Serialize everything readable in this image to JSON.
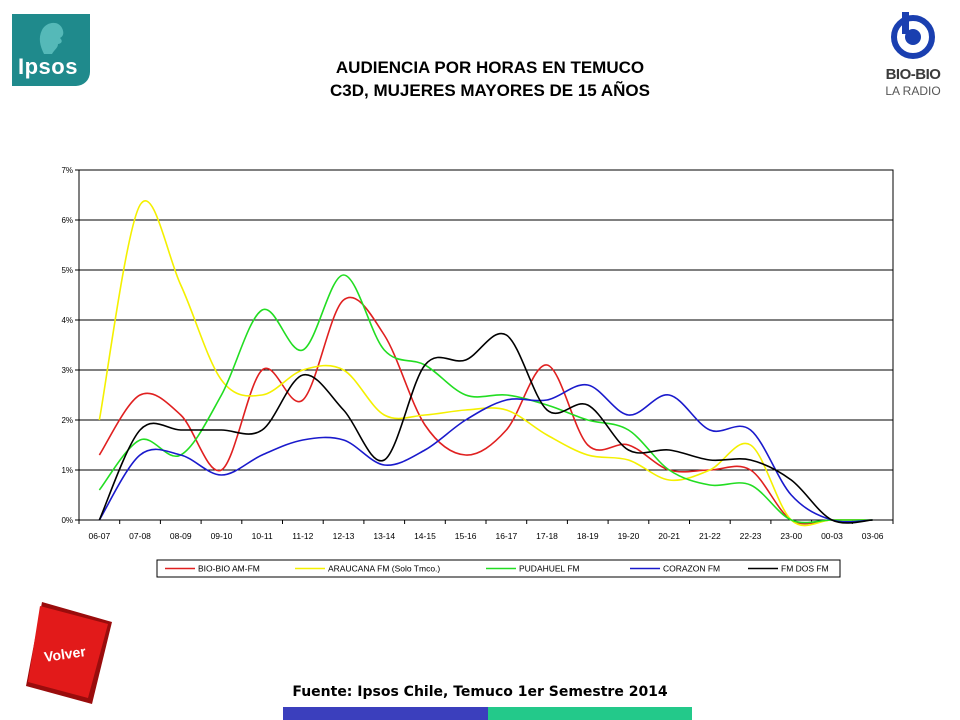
{
  "brand": {
    "ipsos_logo": "Ipsos",
    "biobio_logo_name": "BIO-BIO",
    "biobio_logo_sub": "LA RADIO",
    "ipsos_color": "#1f8a8c"
  },
  "title_line1": "AUDIENCIA POR HORAS EN TEMUCO",
  "title_line2": "C3D, MUJERES MAYORES DE 15 AÑOS",
  "volver_label": "Volver",
  "source": "Fuente: Ipsos Chile, Temuco 1er Semestre 2014",
  "chart_data": {
    "type": "line",
    "smooth": true,
    "categories": [
      "06-07",
      "07-08",
      "08-09",
      "09-10",
      "10-11",
      "11-12",
      "12-13",
      "13-14",
      "14-15",
      "15-16",
      "16-17",
      "17-18",
      "18-19",
      "19-20",
      "20-21",
      "21-22",
      "22-23",
      "23-00",
      "00-03",
      "03-06"
    ],
    "y_ticks": [
      "0%",
      "1%",
      "2%",
      "3%",
      "4%",
      "5%",
      "6%",
      "7%"
    ],
    "ylim": [
      0,
      7
    ],
    "grid": true,
    "legend_position": "bottom",
    "series": [
      {
        "name": "BIO-BIO AM-FM",
        "color": "#e02020",
        "values": [
          1.3,
          2.5,
          2.1,
          1.0,
          3.0,
          2.4,
          4.4,
          3.7,
          1.9,
          1.3,
          1.8,
          3.1,
          1.5,
          1.5,
          1.0,
          1.0,
          1.0,
          0.0,
          0.0,
          0.0
        ]
      },
      {
        "name": "ARAUCANA FM  (Solo Tmco.)",
        "color": "#f4f000",
        "values": [
          2.0,
          6.3,
          4.7,
          2.8,
          2.5,
          3.0,
          3.0,
          2.1,
          2.1,
          2.2,
          2.2,
          1.7,
          1.3,
          1.2,
          0.8,
          1.0,
          1.5,
          0.0,
          0.0,
          0.0
        ]
      },
      {
        "name": "PUDAHUEL FM",
        "color": "#22dd22",
        "values": [
          0.6,
          1.6,
          1.3,
          2.5,
          4.2,
          3.4,
          4.9,
          3.4,
          3.1,
          2.5,
          2.5,
          2.3,
          2.0,
          1.8,
          1.0,
          0.7,
          0.7,
          0.0,
          0.0,
          0.0
        ]
      },
      {
        "name": "CORAZON FM",
        "color": "#1a1acc",
        "values": [
          0.0,
          1.3,
          1.3,
          0.9,
          1.3,
          1.6,
          1.6,
          1.1,
          1.4,
          2.0,
          2.4,
          2.4,
          2.7,
          2.1,
          2.5,
          1.8,
          1.8,
          0.5,
          0.0,
          0.0
        ]
      },
      {
        "name": "FM DOS FM",
        "color": "#000000",
        "values": [
          0.0,
          1.8,
          1.8,
          1.8,
          1.8,
          2.9,
          2.2,
          1.2,
          3.1,
          3.2,
          3.7,
          2.2,
          2.3,
          1.4,
          1.4,
          1.2,
          1.2,
          0.8,
          0.0,
          0.0
        ]
      }
    ]
  }
}
